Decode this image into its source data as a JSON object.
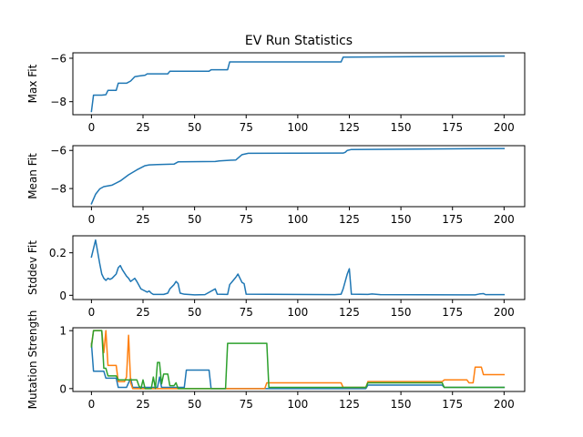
{
  "title": "EV Run Statistics",
  "colors": {
    "blue": "#1f77b4",
    "orange": "#ff7f0e",
    "green": "#2ca02c"
  },
  "chart_data": [
    {
      "type": "line",
      "ylabel": "Max Fit",
      "xlim": [
        -9,
        210
      ],
      "ylim": [
        -8.6,
        -5.75
      ],
      "xticks": [
        0,
        25,
        50,
        75,
        100,
        125,
        150,
        175,
        200
      ],
      "yticks": [
        -8,
        -6
      ],
      "series": [
        {
          "color": "#1f77b4",
          "points": [
            [
              0,
              -8.45
            ],
            [
              1,
              -7.7
            ],
            [
              5,
              -7.7
            ],
            [
              7,
              -7.68
            ],
            [
              8,
              -7.48
            ],
            [
              12,
              -7.48
            ],
            [
              13,
              -7.15
            ],
            [
              17,
              -7.15
            ],
            [
              19,
              -7.05
            ],
            [
              21,
              -6.85
            ],
            [
              23,
              -6.82
            ],
            [
              26,
              -6.78
            ],
            [
              27,
              -6.72
            ],
            [
              37,
              -6.72
            ],
            [
              38,
              -6.6
            ],
            [
              57,
              -6.6
            ],
            [
              58,
              -6.53
            ],
            [
              66,
              -6.53
            ],
            [
              67,
              -6.17
            ],
            [
              121,
              -6.17
            ],
            [
              122,
              -5.95
            ],
            [
              200,
              -5.9
            ]
          ]
        }
      ]
    },
    {
      "type": "line",
      "ylabel": "Mean Fit",
      "xlim": [
        -9,
        210
      ],
      "ylim": [
        -8.95,
        -5.75
      ],
      "xticks": [
        0,
        25,
        50,
        75,
        100,
        125,
        150,
        175,
        200
      ],
      "yticks": [
        -8,
        -6
      ],
      "series": [
        {
          "color": "#1f77b4",
          "points": [
            [
              0,
              -8.8
            ],
            [
              2,
              -8.3
            ],
            [
              4,
              -8.02
            ],
            [
              6,
              -7.9
            ],
            [
              10,
              -7.82
            ],
            [
              14,
              -7.6
            ],
            [
              18,
              -7.28
            ],
            [
              22,
              -7.02
            ],
            [
              26,
              -6.8
            ],
            [
              28,
              -6.76
            ],
            [
              32,
              -6.74
            ],
            [
              40,
              -6.72
            ],
            [
              42,
              -6.6
            ],
            [
              60,
              -6.58
            ],
            [
              62,
              -6.55
            ],
            [
              70,
              -6.5
            ],
            [
              73,
              -6.22
            ],
            [
              76,
              -6.15
            ],
            [
              122,
              -6.14
            ],
            [
              123,
              -6.1
            ],
            [
              124,
              -6.0
            ],
            [
              126,
              -5.95
            ],
            [
              200,
              -5.9
            ]
          ]
        }
      ]
    },
    {
      "type": "line",
      "ylabel": "Stddev Fit",
      "xlim": [
        -9,
        210
      ],
      "ylim": [
        -0.02,
        0.28
      ],
      "xticks": [
        0,
        25,
        50,
        75,
        100,
        125,
        150,
        175,
        200
      ],
      "yticks": [
        0.0,
        0.2
      ],
      "series": [
        {
          "color": "#1f77b4",
          "points": [
            [
              0,
              0.18
            ],
            [
              2,
              0.26
            ],
            [
              4,
              0.15
            ],
            [
              5,
              0.1
            ],
            [
              6,
              0.08
            ],
            [
              7,
              0.07
            ],
            [
              8,
              0.08
            ],
            [
              9,
              0.075
            ],
            [
              10,
              0.08
            ],
            [
              11,
              0.09
            ],
            [
              12,
              0.1
            ],
            [
              13,
              0.13
            ],
            [
              14,
              0.14
            ],
            [
              15,
              0.12
            ],
            [
              17,
              0.09
            ],
            [
              18,
              0.08
            ],
            [
              19,
              0.065
            ],
            [
              21,
              0.08
            ],
            [
              22,
              0.065
            ],
            [
              24,
              0.03
            ],
            [
              25,
              0.025
            ],
            [
              27,
              0.015
            ],
            [
              28,
              0.02
            ],
            [
              29,
              0.01
            ],
            [
              30,
              0.004
            ],
            [
              35,
              0.004
            ],
            [
              37,
              0.01
            ],
            [
              38,
              0.03
            ],
            [
              40,
              0.05
            ],
            [
              41,
              0.065
            ],
            [
              42,
              0.055
            ],
            [
              43,
              0.01
            ],
            [
              45,
              0.005
            ],
            [
              50,
              0.002
            ],
            [
              55,
              0.003
            ],
            [
              60,
              0.03
            ],
            [
              61,
              0.005
            ],
            [
              66,
              0.004
            ],
            [
              67,
              0.05
            ],
            [
              70,
              0.085
            ],
            [
              71,
              0.1
            ],
            [
              72,
              0.08
            ],
            [
              73,
              0.06
            ],
            [
              74,
              0.055
            ],
            [
              75,
              0.005
            ],
            [
              118,
              0.003
            ],
            [
              121,
              0.005
            ],
            [
              122,
              0.03
            ],
            [
              124,
              0.1
            ],
            [
              125,
              0.125
            ],
            [
              126,
              0.005
            ],
            [
              134,
              0.004
            ],
            [
              136,
              0.006
            ],
            [
              140,
              0.003
            ],
            [
              186,
              0.002
            ],
            [
              188,
              0.006
            ],
            [
              190,
              0.008
            ],
            [
              191,
              0.003
            ],
            [
              200,
              0.003
            ]
          ]
        }
      ]
    },
    {
      "type": "line",
      "ylabel": "Mutation Strength",
      "xlim": [
        -9,
        210
      ],
      "ylim": [
        -0.05,
        1.05
      ],
      "xticks": [
        0,
        25,
        50,
        75,
        100,
        125,
        150,
        175,
        200
      ],
      "yticks": [
        0,
        1
      ],
      "series": [
        {
          "color": "#1f77b4",
          "points": [
            [
              0,
              0.78
            ],
            [
              1,
              0.3
            ],
            [
              6,
              0.3
            ],
            [
              7,
              0.18
            ],
            [
              12,
              0.18
            ],
            [
              13,
              0.02
            ],
            [
              17,
              0.02
            ],
            [
              19,
              0.18
            ],
            [
              20,
              0.02
            ],
            [
              32,
              0.02
            ],
            [
              33,
              0.2
            ],
            [
              34,
              0.02
            ],
            [
              45,
              0.02
            ],
            [
              46,
              0.32
            ],
            [
              57,
              0.32
            ],
            [
              58,
              0.0
            ],
            [
              133,
              0.0
            ],
            [
              134,
              0.06
            ],
            [
              170,
              0.06
            ],
            [
              171,
              0.02
            ],
            [
              200,
              0.02
            ]
          ]
        },
        {
          "color": "#ff7f0e",
          "points": [
            [
              0,
              0.75
            ],
            [
              1,
              1.0
            ],
            [
              5,
              1.0
            ],
            [
              6,
              0.62
            ],
            [
              7,
              1.0
            ],
            [
              8,
              0.4
            ],
            [
              12,
              0.4
            ],
            [
              13,
              0.12
            ],
            [
              16,
              0.12
            ],
            [
              17,
              0.2
            ],
            [
              18,
              0.92
            ],
            [
              19,
              0.1
            ],
            [
              20,
              0.0
            ],
            [
              84,
              0.0
            ],
            [
              85,
              0.1
            ],
            [
              121,
              0.1
            ],
            [
              122,
              0.02
            ],
            [
              133,
              0.02
            ],
            [
              134,
              0.12
            ],
            [
              170,
              0.12
            ],
            [
              171,
              0.15
            ],
            [
              182,
              0.15
            ],
            [
              183,
              0.1
            ],
            [
              185,
              0.1
            ],
            [
              186,
              0.37
            ],
            [
              189,
              0.37
            ],
            [
              190,
              0.24
            ],
            [
              200,
              0.24
            ]
          ]
        },
        {
          "color": "#2ca02c",
          "points": [
            [
              0,
              0.72
            ],
            [
              1,
              1.0
            ],
            [
              5,
              1.0
            ],
            [
              6,
              0.35
            ],
            [
              7,
              0.35
            ],
            [
              8,
              0.22
            ],
            [
              12,
              0.22
            ],
            [
              13,
              0.15
            ],
            [
              22,
              0.15
            ],
            [
              23,
              0.05
            ],
            [
              24,
              0.0
            ],
            [
              25,
              0.15
            ],
            [
              26,
              0.0
            ],
            [
              29,
              0.0
            ],
            [
              30,
              0.2
            ],
            [
              31,
              0.0
            ],
            [
              32,
              0.45
            ],
            [
              33,
              0.45
            ],
            [
              34,
              0.08
            ],
            [
              35,
              0.25
            ],
            [
              37,
              0.25
            ],
            [
              38,
              0.05
            ],
            [
              40,
              0.05
            ],
            [
              41,
              0.1
            ],
            [
              42,
              0.0
            ],
            [
              65,
              0.0
            ],
            [
              66,
              0.78
            ],
            [
              85,
              0.78
            ],
            [
              86,
              0.02
            ],
            [
              133,
              0.02
            ],
            [
              134,
              0.1
            ],
            [
              170,
              0.1
            ],
            [
              171,
              0.02
            ],
            [
              200,
              0.02
            ]
          ]
        }
      ]
    }
  ]
}
